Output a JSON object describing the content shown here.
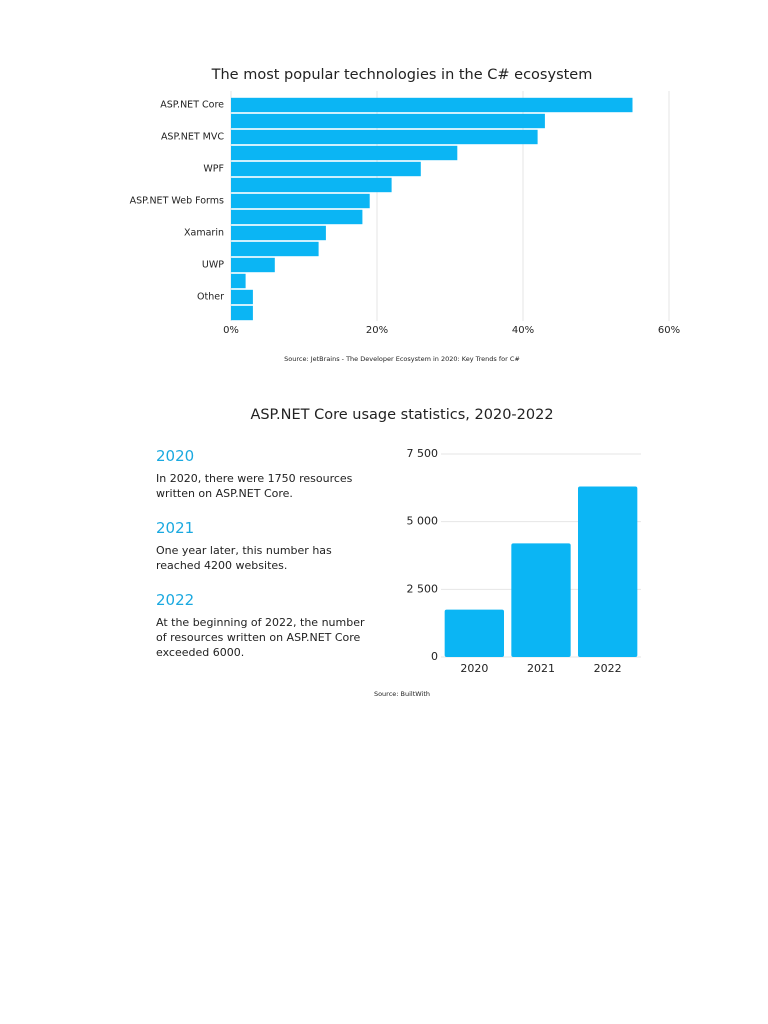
{
  "chart_data": [
    {
      "type": "hbar",
      "title": "The most popular technologies in the C# ecosystem",
      "categories": [
        "ASP.NET Core",
        null,
        "ASP.NET MVC",
        null,
        "WPF",
        null,
        "ASP.NET Web Forms",
        null,
        "Xamarin",
        null,
        "UWP",
        null,
        "Other",
        null
      ],
      "values": [
        55,
        43,
        42,
        31,
        26,
        22,
        19,
        18,
        13,
        12,
        6,
        2,
        3,
        3
      ],
      "color": "#0bb5f4",
      "xlim": [
        0,
        60
      ],
      "xticks": [
        {
          "value": 0,
          "label": "0%"
        },
        {
          "value": 20,
          "label": "20%"
        },
        {
          "value": 40,
          "label": "40%"
        },
        {
          "value": 60,
          "label": "60%"
        }
      ],
      "grid": true,
      "source": "Source: JetBrains - The Developer Ecosystem in 2020: Key Trends for C#"
    },
    {
      "type": "bar",
      "title": "ASP.NET Core usage statistics, 2020-2022",
      "categories": [
        "2020",
        "2021",
        "2022"
      ],
      "values": [
        1750,
        4200,
        6300
      ],
      "color": "#0bb5f4",
      "ylim": [
        0,
        7500
      ],
      "yticks": [
        {
          "value": 0,
          "label": "0"
        },
        {
          "value": 2500,
          "label": "2 500"
        },
        {
          "value": 5000,
          "label": "5 000"
        },
        {
          "value": 7500,
          "label": "7 500"
        }
      ],
      "grid": true,
      "source": "Source: BuiltWith"
    }
  ],
  "notes": [
    {
      "heading": "2020",
      "text": "In 2020, there were 1750 resources written on ASP.NET Core."
    },
    {
      "heading": "2021",
      "text": "One year later, this number has reached 4200 websites."
    },
    {
      "heading": "2022",
      "text": "At the beginning of 2022, the number of resources written on ASP.NET Core exceeded 6000."
    }
  ]
}
